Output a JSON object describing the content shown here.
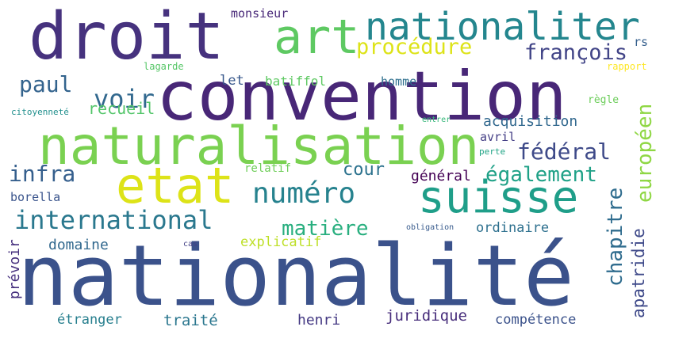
{
  "words": [
    {
      "text": "nationalité",
      "color": "#3b528b"
    },
    {
      "text": "convention",
      "color": "#482777"
    },
    {
      "text": "droit",
      "color": "#46327e"
    },
    {
      "text": "naturalisation",
      "color": "#7ad151"
    },
    {
      "text": "etat",
      "color": "#dde318"
    },
    {
      "text": "art",
      "color": "#5ec962"
    },
    {
      "text": "nationaliter",
      "color": "#24868e"
    },
    {
      "text": "suisse",
      "color": "#1f9e89"
    },
    {
      "text": "numéro",
      "color": "#26828e"
    },
    {
      "text": "international",
      "color": "#2a788e"
    },
    {
      "text": "voir",
      "color": "#31688e"
    },
    {
      "text": "paul",
      "color": "#33638d"
    },
    {
      "text": "procédure",
      "color": "#dde318"
    },
    {
      "text": "françois",
      "color": "#414487"
    },
    {
      "text": "fédéral",
      "color": "#3e4a89"
    },
    {
      "text": "infra",
      "color": "#355f8d"
    },
    {
      "text": "cour",
      "color": "#2c728e"
    },
    {
      "text": "également",
      "color": "#1fa187"
    },
    {
      "text": "européen",
      "color": "#8fd744"
    },
    {
      "text": "matière",
      "color": "#29af7f"
    },
    {
      "text": "chapitre",
      "color": "#2f6c8e"
    },
    {
      "text": "apatridie",
      "color": "#3e4989"
    },
    {
      "text": "général",
      "color": "#440154"
    },
    {
      "text": "acquisition",
      "color": "#31688e"
    },
    {
      "text": "recueil",
      "color": "#52c569"
    },
    {
      "text": "let",
      "color": "#38588c"
    },
    {
      "text": "batiffol",
      "color": "#5ec962"
    },
    {
      "text": "homme",
      "color": "#2e6f8e"
    },
    {
      "text": "monsieur",
      "color": "#482878"
    },
    {
      "text": "rs",
      "color": "#355f8d"
    },
    {
      "text": "lagarde",
      "color": "#56c667"
    },
    {
      "text": "rapport",
      "color": "#fde725"
    },
    {
      "text": "règle",
      "color": "#6ccd5a"
    },
    {
      "text": "citoyenneté",
      "color": "#218f8d"
    },
    {
      "text": "entrer",
      "color": "#35b779"
    },
    {
      "text": "avril",
      "color": "#433e85"
    },
    {
      "text": "perte",
      "color": "#20a486"
    },
    {
      "text": "relatif",
      "color": "#6ece58"
    },
    {
      "text": "borella",
      "color": "#3a548c"
    },
    {
      "text": "ordinaire",
      "color": "#2d708e"
    },
    {
      "text": "obligation",
      "color": "#375a8c"
    },
    {
      "text": "domaine",
      "color": "#31688e"
    },
    {
      "text": "explicatif",
      "color": "#bddf26"
    },
    {
      "text": "cas",
      "color": "#424086"
    },
    {
      "text": "prévoir",
      "color": "#46307e"
    },
    {
      "text": "étranger",
      "color": "#277f8e"
    },
    {
      "text": "traité",
      "color": "#2a768e"
    },
    {
      "text": "henri",
      "color": "#443983"
    },
    {
      "text": "juridique",
      "color": "#472d7b"
    },
    {
      "text": "compétence",
      "color": "#3b528b"
    }
  ]
}
